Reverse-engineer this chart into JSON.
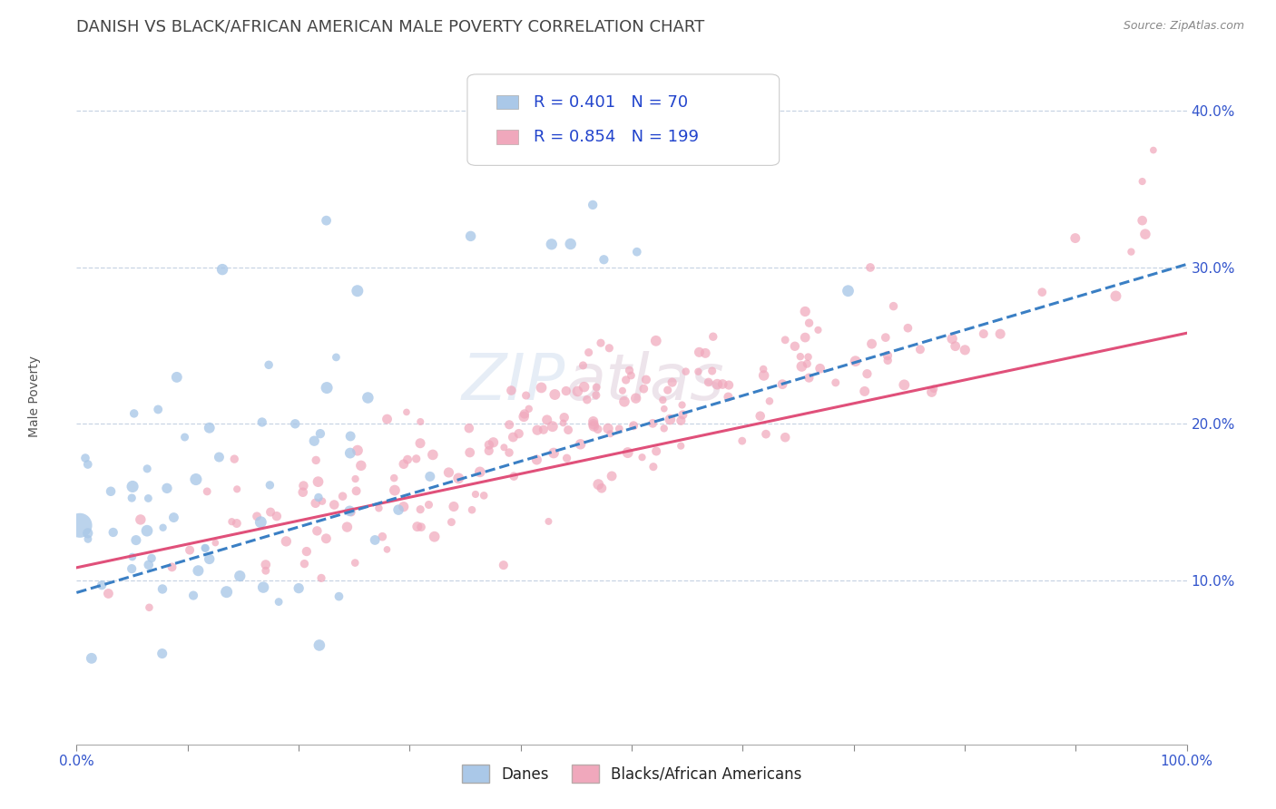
{
  "title": "DANISH VS BLACK/AFRICAN AMERICAN MALE POVERTY CORRELATION CHART",
  "source": "Source: ZipAtlas.com",
  "ylabel": "Male Poverty",
  "xlim": [
    0,
    1.0
  ],
  "ylim_low": -0.005,
  "ylim_high": 0.44,
  "yticks": [
    0.1,
    0.2,
    0.3,
    0.4
  ],
  "ytick_labels": [
    "10.0%",
    "20.0%",
    "30.0%",
    "40.0%"
  ],
  "xticks": [
    0.0,
    0.1,
    0.2,
    0.3,
    0.4,
    0.5,
    0.6,
    0.7,
    0.8,
    0.9,
    1.0
  ],
  "xtick_labels": [
    "0.0%",
    "",
    "",
    "",
    "",
    "",
    "",
    "",
    "",
    "",
    "100.0%"
  ],
  "legend_labels": [
    "Danes",
    "Blacks/African Americans"
  ],
  "R_danes": 0.401,
  "N_danes": 70,
  "R_blacks": 0.854,
  "N_blacks": 199,
  "danes_scatter_color": "#aac8e8",
  "blacks_scatter_color": "#f0a8bc",
  "danes_line_color": "#3a7fc4",
  "blacks_line_color": "#e0507a",
  "background_color": "#ffffff",
  "grid_color": "#c8d4e4",
  "watermark": "ZIPAtlas",
  "title_fontsize": 13,
  "axis_label_fontsize": 10,
  "tick_fontsize": 11,
  "legend_fontsize": 13
}
